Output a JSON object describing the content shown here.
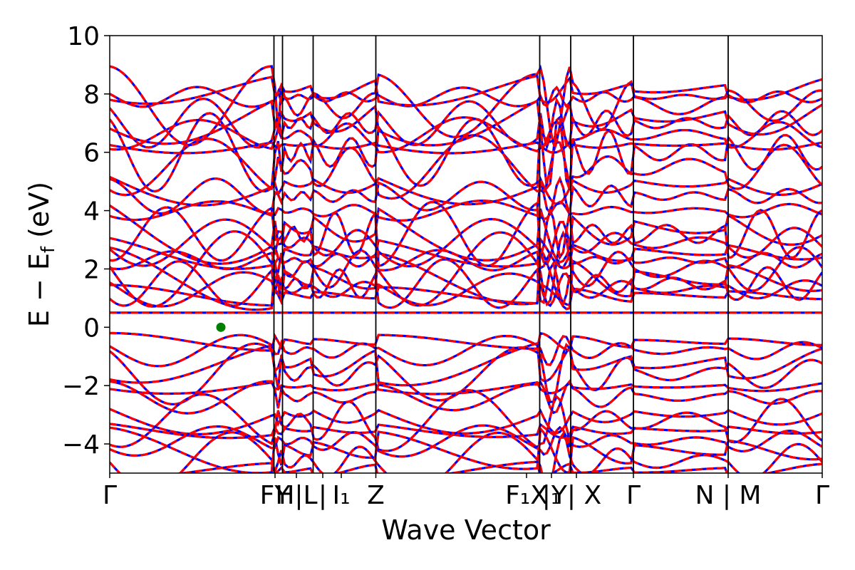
{
  "chart_data": {
    "type": "line",
    "title": "",
    "xlabel": "Wave Vector",
    "ylabel": "E − Ef (eV)",
    "ylabel_main": "E − E",
    "ylabel_sub": "f",
    "ylabel_unit": " (eV)",
    "xlim": [
      0,
      1
    ],
    "ylim": [
      -5,
      10
    ],
    "yticks": [
      -4,
      -2,
      0,
      2,
      4,
      6,
      8,
      10
    ],
    "ytick_labels": [
      "−4",
      "−2",
      "0",
      "2",
      "4",
      "6",
      "8",
      "10"
    ],
    "grid": false,
    "legend": "none",
    "series_colors": {
      "spin_up": "#0000ff",
      "spin_down": "#ff0000"
    },
    "kpoint_labels": [
      {
        "x": 0.0,
        "label": "Γ"
      },
      {
        "x": 0.2305,
        "label": "F"
      },
      {
        "x": 0.2425,
        "label": "Y|L"
      },
      {
        "x": 0.2855,
        "label": "L|I"
      },
      {
        "x": 0.3735,
        "label": "I₁"
      },
      {
        "x": 0.3735,
        "label": "Z"
      },
      {
        "x": 0.6035,
        "label": "F₁"
      },
      {
        "x": 0.647,
        "label": "X₁|Y"
      },
      {
        "x": 0.647,
        "label": "Y|X"
      },
      {
        "x": 0.735,
        "label": "Γ"
      },
      {
        "x": 0.868,
        "label": "N|M"
      },
      {
        "x": 1.0,
        "label": "Γ"
      }
    ],
    "xtick_text": [
      {
        "x": 0.0,
        "text": "Γ"
      },
      {
        "x": 0.232,
        "text": "FY"
      },
      {
        "x": 0.262,
        "text": "H|L"
      },
      {
        "x": 0.299,
        "text": "|"
      },
      {
        "x": 0.325,
        "text": "I₁"
      },
      {
        "x": 0.3735,
        "text": "Z"
      },
      {
        "x": 0.585,
        "text": "F₁X"
      },
      {
        "x": 0.62,
        "text": "|₁"
      },
      {
        "x": 0.655,
        "text": "Y| X"
      },
      {
        "x": 0.735,
        "text": "Γ"
      },
      {
        "x": 0.868,
        "text": "N | M"
      },
      {
        "x": 1.0,
        "text": "Γ"
      }
    ],
    "vertical_lines_x": [
      0.2305,
      0.2425,
      0.2855,
      0.3735,
      0.6035,
      0.647,
      0.735,
      0.868
    ],
    "marker": {
      "x": 0.156,
      "y": 0.0,
      "color": "#008000"
    },
    "flat_band_y": 0.5
  }
}
